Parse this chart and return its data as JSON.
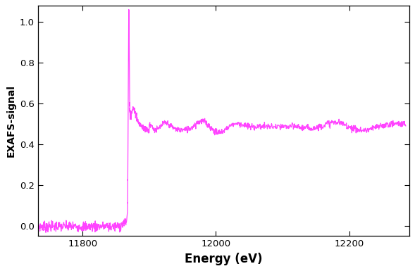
{
  "line_color": "#FF44FF",
  "line_width": 0.9,
  "xlabel": "Energy (eV)",
  "ylabel": "EXAFS-signal",
  "xlim": [
    11733,
    12290
  ],
  "ylim": [
    -0.05,
    1.08
  ],
  "yticks": [
    0.0,
    0.2,
    0.4,
    0.6,
    0.8,
    1.0
  ],
  "xticks": [
    11800,
    12000,
    12200
  ],
  "background_color": "#ffffff",
  "spine_color": "#000000",
  "edge_energy": 11869.5,
  "pre_edge_noise": 0.013,
  "post_edge_mean": 0.485,
  "post_edge_osc_amp": 0.022,
  "seed": 7
}
